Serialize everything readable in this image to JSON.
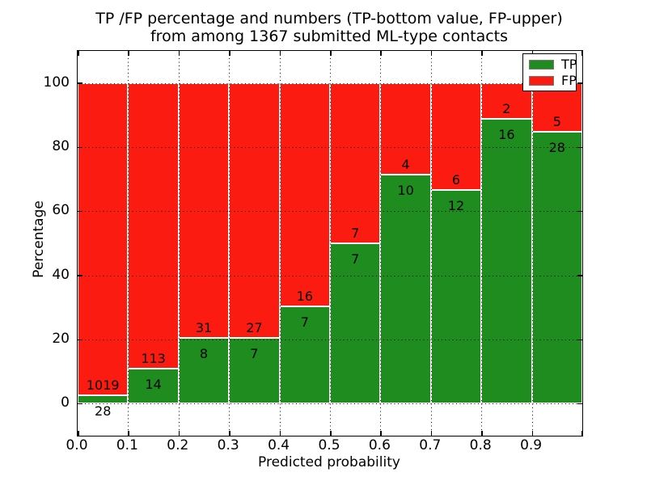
{
  "title": {
    "line1": "TP /FP percentage and numbers (TP-bottom value, FP-upper)",
    "line2": "from among 1367 submitted ML-type contacts"
  },
  "chart_data": {
    "type": "bar",
    "stacked": true,
    "title": "TP /FP percentage and numbers (TP-bottom value, FP-upper) from among 1367 submitted ML-type contacts",
    "xlabel": "Predicted probability",
    "ylabel": "Percentage",
    "total_contacts": 1367,
    "xlim": [
      0.0,
      1.0
    ],
    "ylim": [
      -10,
      110
    ],
    "bin_width": 0.1,
    "x_tick_labels": [
      "0.0",
      "0.1",
      "0.2",
      "0.3",
      "0.4",
      "0.5",
      "0.6",
      "0.7",
      "0.8",
      "0.9"
    ],
    "y_tick_values": [
      0,
      20,
      40,
      60,
      80,
      100
    ],
    "y_tick_labels": [
      "0",
      "20",
      "40",
      "60",
      "80",
      "100"
    ],
    "grid": "dotted",
    "bar_unit": "percentage of bin stacked to 100",
    "annotation_note": "TP count below green/red boundary, FP count above boundary",
    "bin_starts": [
      0.0,
      0.1,
      0.2,
      0.3,
      0.4,
      0.5,
      0.6,
      0.7,
      0.8,
      0.9
    ],
    "series": [
      {
        "name": "TP",
        "color": "#1e8c1e",
        "counts": [
          28,
          14,
          8,
          7,
          7,
          7,
          10,
          12,
          16,
          28
        ]
      },
      {
        "name": "FP",
        "color": "#fb1b10",
        "counts": [
          1019,
          113,
          31,
          27,
          16,
          7,
          4,
          6,
          2,
          5
        ]
      }
    ],
    "tp_percent": [
      2.7,
      11.0,
      20.5,
      20.6,
      30.4,
      50.0,
      71.4,
      66.7,
      88.9,
      84.8
    ],
    "legend": {
      "position": "upper right",
      "entries": [
        {
          "label": "TP",
          "color": "#1e8c1e"
        },
        {
          "label": "FP",
          "color": "#fb1b10"
        }
      ]
    },
    "colors": {
      "tp_green": "#1e8c1e",
      "fp_red": "#fb1b10",
      "edge": "#ffffff",
      "grid": "#000000"
    }
  }
}
